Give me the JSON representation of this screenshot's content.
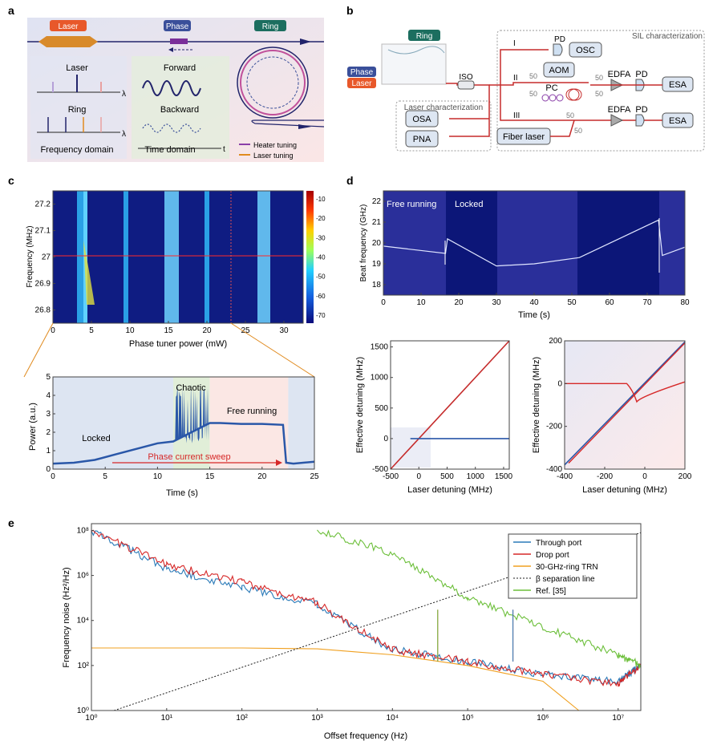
{
  "letters": {
    "a": "a",
    "b": "b",
    "c": "c",
    "d": "d",
    "e": "e"
  },
  "panel_a": {
    "laser_tag": "Laser",
    "phase_tag": "Phase",
    "ring_tag": "Ring",
    "laser_label": "Laser",
    "ring_label": "Ring",
    "lambda": "λ",
    "freq_domain": "Frequency domain",
    "forward": "Forward",
    "backward": "Backward",
    "time_axis": "t",
    "time_domain": "Time domain",
    "legend_heater": "Heater tuning",
    "legend_laser": "Laser tuning",
    "colors": {
      "laser": "#e8582a",
      "phase": "#3a4f9a",
      "ring": "#1c6e5f",
      "heater": "#8a3fa8",
      "laser_tuning": "#e08a1e",
      "navy": "#22246b"
    }
  },
  "panel_b": {
    "ring_tag": "Ring",
    "phase_tag": "Phase",
    "laser_tag": "Laser",
    "iso": "ISO",
    "laser_char": "Laser characterization",
    "sil_char": "SIL characterization",
    "osa": "OSA",
    "pna": "PNA",
    "pd1": "PD",
    "osc": "OSC",
    "aom": "AOM",
    "pc": "PC",
    "edfa1": "EDFA",
    "pd2": "PD",
    "esa1": "ESA",
    "edfa2": "EDFA",
    "pd3": "PD",
    "esa2": "ESA",
    "fiber_laser": "Fiber laser",
    "branch_I": "I",
    "branch_II": "II",
    "branch_III": "III",
    "split": [
      "50",
      "50",
      "50",
      "50",
      "50",
      "50"
    ]
  },
  "panel_c_top": {
    "ylabel": "Frequency (MHz)",
    "xlabel": "Phase tuner power (mW)",
    "yticks": [
      "27.2",
      "27.1",
      "27",
      "26.9",
      "26.8"
    ],
    "xticks": [
      "0",
      "5",
      "10",
      "15",
      "20",
      "25",
      "30"
    ],
    "cbar_ticks": [
      "-10",
      "-20",
      "-30",
      "-40",
      "-50",
      "-60",
      "-70"
    ]
  },
  "panel_c_bottom": {
    "ylabel": "Power (a.u.)",
    "xlabel": "Time (s)",
    "yticks": [
      "0",
      "1",
      "2",
      "3",
      "4",
      "5"
    ],
    "xticks": [
      "0",
      "5",
      "10",
      "15",
      "20",
      "25"
    ],
    "locked": "Locked",
    "chaotic": "Chaotic",
    "free": "Free running",
    "sweep": "Phase current sweep"
  },
  "panel_d_top": {
    "ylabel": "Beat frequency (GHz)",
    "xlabel": "Time (s)",
    "yticks": [
      "22",
      "21",
      "20",
      "19",
      "18"
    ],
    "xticks": [
      "0",
      "10",
      "20",
      "30",
      "40",
      "50",
      "60",
      "70",
      "80"
    ],
    "free": "Free running",
    "locked": "Locked"
  },
  "panel_d_left": {
    "ylabel": "Effective detuning (MHz)",
    "xlabel": "Laser detuning (MHz)",
    "yticks": [
      "1500",
      "1000",
      "500",
      "0",
      "-500"
    ],
    "xticks": [
      "-500",
      "0",
      "500",
      "1000",
      "1500"
    ]
  },
  "panel_d_right": {
    "ylabel": "Effective detuning (MHz)",
    "xlabel": "Laser detuning (MHz)",
    "yticks": [
      "200",
      "0",
      "-200",
      "-400"
    ],
    "xticks": [
      "-400",
      "-200",
      "0",
      "200"
    ]
  },
  "panel_e": {
    "ylabel": "Frequency noise (Hz²/Hz)",
    "xlabel": "Offset frequency (Hz)",
    "xticks": [
      "10⁰",
      "10¹",
      "10²",
      "10³",
      "10⁴",
      "10⁵",
      "10⁶",
      "10⁷"
    ],
    "yticks": [
      "10⁸",
      "10⁶",
      "10⁴",
      "10²",
      "10⁰"
    ],
    "legend": [
      "Through port",
      "Drop port",
      "30-GHz-ring TRN",
      "β separation line",
      "Ref. [35]"
    ]
  },
  "chart_data": [
    {
      "type": "line",
      "title": "",
      "xlabel": "Time (s)",
      "ylabel": "Power (a.u.)",
      "xlim": [
        0,
        25
      ],
      "ylim": [
        0,
        5
      ],
      "series": [
        {
          "x": [
            0,
            2,
            4,
            6,
            8,
            10,
            11.5,
            12,
            13,
            14,
            15,
            16,
            18,
            20,
            22,
            22.3,
            23,
            25
          ],
          "values": [
            0.3,
            0.35,
            0.5,
            0.8,
            1.1,
            1.4,
            1.5,
            3.5,
            3.8,
            3.7,
            2.5,
            2.5,
            2.45,
            2.45,
            2.4,
            0.35,
            0.3,
            0.4
          ]
        }
      ]
    },
    {
      "type": "line",
      "xlabel": "Time (s)",
      "ylabel": "Beat frequency (GHz)",
      "xlim": [
        0,
        80
      ],
      "ylim": [
        17.5,
        22.5
      ],
      "series": [
        {
          "x": [
            0,
            16.5,
            17,
            30,
            40,
            52,
            73,
            74,
            80
          ],
          "values": [
            19.85,
            19.5,
            20.2,
            18.9,
            19.0,
            19.3,
            21.1,
            19.4,
            19.8
          ]
        }
      ]
    },
    {
      "type": "line",
      "xlabel": "Laser detuning (MHz)",
      "ylabel": "Effective detuning (MHz)",
      "xlim": [
        -500,
        1600
      ],
      "ylim": [
        -500,
        1600
      ],
      "series": [
        {
          "x": [
            -500,
            1600
          ],
          "values": [
            -500,
            1600
          ]
        },
        {
          "x": [
            -500,
            -150,
            1600
          ],
          "values": [
            0,
            0,
            0
          ]
        }
      ]
    },
    {
      "type": "line",
      "xlabel": "Laser detuning (MHz)",
      "ylabel": "Effective detuning (MHz)",
      "xlim": [
        -400,
        200
      ],
      "ylim": [
        -400,
        200
      ],
      "series": [
        {
          "x": [
            -400,
            200
          ],
          "values": [
            -380,
            195
          ]
        },
        {
          "x": [
            -400,
            -90,
            200
          ],
          "values": [
            0,
            0,
            0
          ]
        }
      ]
    },
    {
      "type": "line",
      "xlabel": "Offset frequency (Hz)",
      "ylabel": "Frequency noise (Hz²/Hz)",
      "xscale": "log",
      "yscale": "log",
      "xlim": [
        1,
        20000000
      ],
      "ylim": [
        1,
        200000000
      ],
      "legend_position": "top-right",
      "series": [
        {
          "name": "Through port",
          "x": [
            1,
            10,
            100,
            1000,
            10000,
            100000,
            1000000,
            10000000,
            20000000
          ],
          "values": [
            100000000,
            2000000,
            300000,
            50000,
            500,
            150,
            40,
            20,
            100
          ]
        },
        {
          "name": "Drop port",
          "x": [
            1,
            10,
            100,
            1000,
            10000,
            100000,
            1000000,
            10000000,
            20000000
          ],
          "values": [
            100000000,
            3000000,
            500000,
            60000,
            500,
            150,
            40,
            15,
            100
          ]
        },
        {
          "name": "30-GHz-ring TRN",
          "x": [
            1,
            100,
            1000,
            10000,
            100000,
            1000000,
            3000000
          ],
          "values": [
            600,
            600,
            550,
            300,
            100,
            20,
            1
          ]
        },
        {
          "name": "β separation line",
          "x": [
            2,
            20000000
          ],
          "values": [
            1,
            80000000
          ]
        },
        {
          "name": "Ref. [35]",
          "x": [
            1000,
            10000,
            100000,
            1000000,
            10000000,
            20000000
          ],
          "values": [
            100000000,
            10000000,
            100000,
            5000,
            300,
            100
          ]
        }
      ]
    }
  ]
}
